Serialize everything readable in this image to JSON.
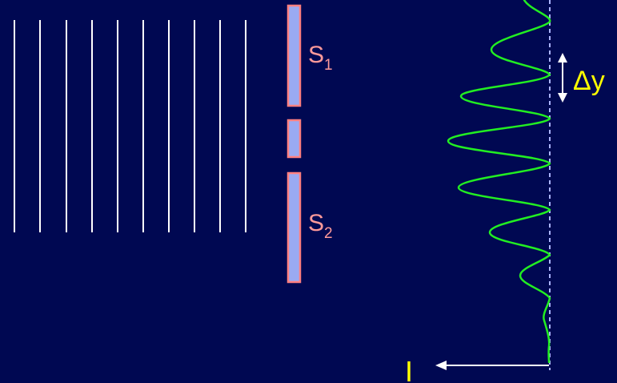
{
  "labels": {
    "slit1_main": "S",
    "slit1_sub": "1",
    "slit2_main": "S",
    "slit2_sub": "2",
    "fringe_spacing": "Δy",
    "intensity": "I"
  },
  "colors": {
    "background": "#000852",
    "wavefront_lines": "#ffffff",
    "barrier_fill": "#9aaaf2",
    "barrier_edge": "#ff8080",
    "slit_label": "#ff9a9a",
    "intensity_curve": "#22ee22",
    "screen_line": "#aab4ff",
    "arrows": "#ffffff",
    "accent_text": "#ffff00"
  },
  "diagram": {
    "incoming_wavefront_count": 10,
    "barrier_segment_count": 3,
    "slit_count": 2,
    "intensity_peak_count": 7
  }
}
